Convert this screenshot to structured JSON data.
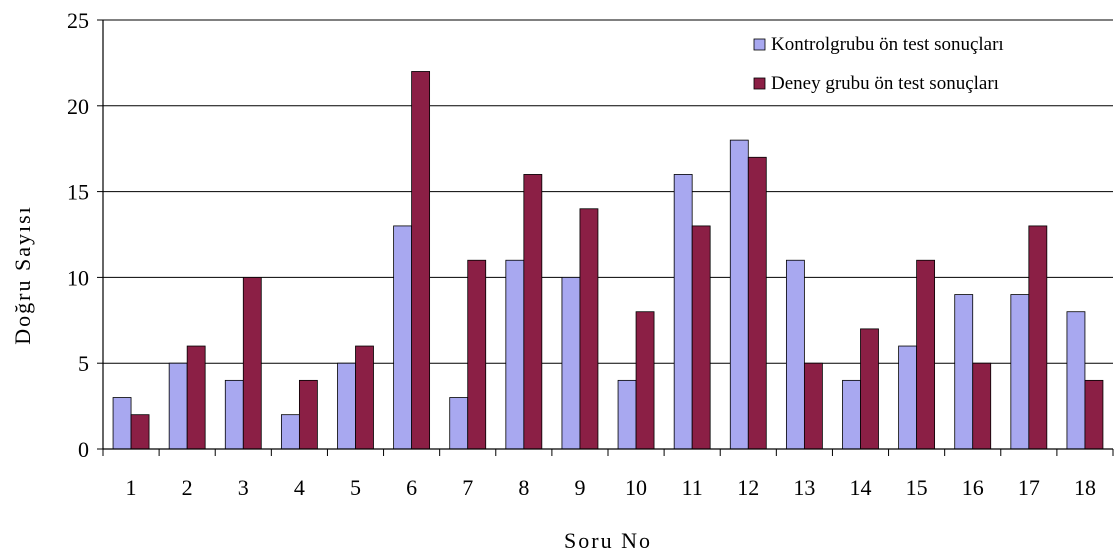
{
  "chart_data": {
    "type": "bar",
    "title": "",
    "xlabel": "Soru No",
    "ylabel": "Doğru Sayısı",
    "ylim": [
      0,
      25
    ],
    "yticks": [
      "0",
      "5",
      "10",
      "15",
      "20",
      "25"
    ],
    "grid": true,
    "legend_position": "top-right",
    "categories": [
      "1",
      "2",
      "3",
      "4",
      "5",
      "6",
      "7",
      "8",
      "9",
      "10",
      "11",
      "12",
      "13",
      "14",
      "15",
      "16",
      "17",
      "18"
    ],
    "series": [
      {
        "name": "Kontrolgrubu ön test sonuçları",
        "color": "#a8a8f0",
        "values": [
          3,
          5,
          4,
          2,
          5,
          13,
          3,
          11,
          10,
          4,
          16,
          18,
          11,
          4,
          6,
          9,
          9,
          8
        ]
      },
      {
        "name": "Deney grubu ön test sonuçları",
        "color": "#8b1f45",
        "values": [
          2,
          6,
          10,
          4,
          6,
          22,
          11,
          16,
          14,
          8,
          13,
          17,
          5,
          7,
          11,
          5,
          13,
          4
        ]
      }
    ]
  }
}
